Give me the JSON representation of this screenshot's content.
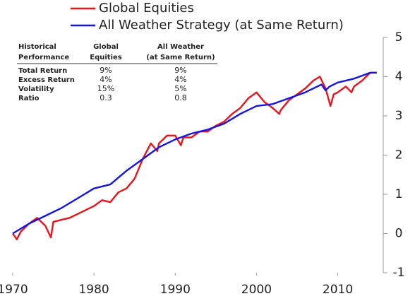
{
  "chart_data": {
    "type": "line",
    "series": [
      {
        "name": "Global Equities",
        "color": "#e8141c",
        "x": [
          1970,
          1970.5,
          1971,
          1972,
          1973,
          1974,
          1974.7,
          1975,
          1976,
          1977,
          1978,
          1979,
          1980,
          1981,
          1982,
          1983,
          1984,
          1985,
          1986,
          1987,
          1987.8,
          1988,
          1989,
          1990,
          1990.7,
          1991,
          1992,
          1993,
          1994,
          1995,
          1996,
          1997,
          1998,
          1999,
          2000,
          2001,
          2002,
          2002.8,
          2003,
          2004,
          2005,
          2006,
          2007,
          2007.8,
          2008.5,
          2009.1,
          2009.5,
          2010,
          2011,
          2011.7,
          2012,
          2013,
          2014,
          2014.8
        ],
        "values": [
          0,
          -0.15,
          0.05,
          0.25,
          0.4,
          0.2,
          -0.1,
          0.3,
          0.35,
          0.4,
          0.5,
          0.6,
          0.7,
          0.85,
          0.8,
          1.05,
          1.15,
          1.4,
          1.9,
          2.3,
          2.1,
          2.3,
          2.5,
          2.5,
          2.25,
          2.45,
          2.45,
          2.6,
          2.6,
          2.75,
          2.85,
          3.05,
          3.2,
          3.45,
          3.6,
          3.35,
          3.2,
          3.05,
          3.15,
          3.4,
          3.55,
          3.7,
          3.9,
          4.0,
          3.7,
          3.25,
          3.55,
          3.6,
          3.75,
          3.6,
          3.75,
          3.9,
          4.1,
          4.1
        ]
      },
      {
        "name": "All Weather Strategy (at Same Return)",
        "color": "#1414e6",
        "x": [
          1970,
          1972,
          1974,
          1976,
          1978,
          1980,
          1982,
          1984,
          1986,
          1988,
          1990,
          1992,
          1994,
          1996,
          1998,
          2000,
          2002,
          2004,
          2006,
          2008,
          2008.5,
          2009,
          2010,
          2012,
          2014,
          2014.8
        ],
        "values": [
          0,
          0.25,
          0.45,
          0.65,
          0.9,
          1.15,
          1.25,
          1.6,
          1.9,
          2.2,
          2.4,
          2.55,
          2.65,
          2.8,
          3.05,
          3.25,
          3.3,
          3.45,
          3.6,
          3.8,
          3.65,
          3.75,
          3.85,
          3.95,
          4.1,
          4.1
        ]
      }
    ],
    "xlim": [
      1970,
      2015.6
    ],
    "xticks": [
      1970,
      1980,
      1990,
      2000,
      2010
    ],
    "ylim": [
      -1,
      5
    ],
    "yticks": [
      -1,
      0,
      1,
      2,
      3,
      4,
      5
    ]
  },
  "table": {
    "header": [
      [
        "Historical",
        "Performance"
      ],
      [
        "Global",
        "Equities"
      ],
      [
        "All Weather",
        "(at Same Return)"
      ]
    ],
    "rows": [
      [
        "Total Return",
        "9%",
        "9%"
      ],
      [
        "Excess Return",
        "4%",
        "4%"
      ],
      [
        "Volatility",
        "15%",
        "5%"
      ],
      [
        "Ratio",
        "0.3",
        "0.8"
      ]
    ]
  }
}
